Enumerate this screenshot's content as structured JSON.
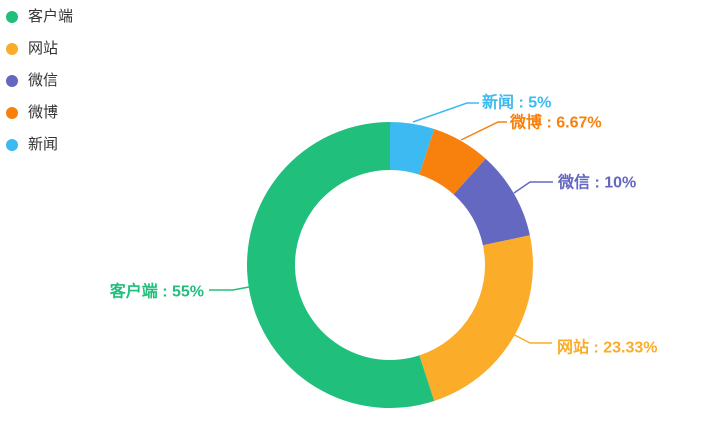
{
  "page": {
    "background": "#ffffff"
  },
  "chart_data": {
    "type": "pie",
    "subtype": "donut",
    "title": "",
    "legend_position": "top-left",
    "unit": "%",
    "label_format": "name : percent",
    "slices": [
      {
        "name": "客户端",
        "value": 55,
        "label": "客户端 : 55%",
        "color": "#20BF7C"
      },
      {
        "name": "网站",
        "value": 23.33,
        "label": "网站 : 23.33%",
        "color": "#FBAC28"
      },
      {
        "name": "微信",
        "value": 10,
        "label": "微信 : 10%",
        "color": "#6568C0"
      },
      {
        "name": "微博",
        "value": 6.67,
        "label": "微博 : 6.67%",
        "color": "#F8810D"
      },
      {
        "name": "新闻",
        "value": 5,
        "label": "新闻 : 5%",
        "color": "#3DBAF2"
      }
    ],
    "legend_text_color": "#333333"
  }
}
